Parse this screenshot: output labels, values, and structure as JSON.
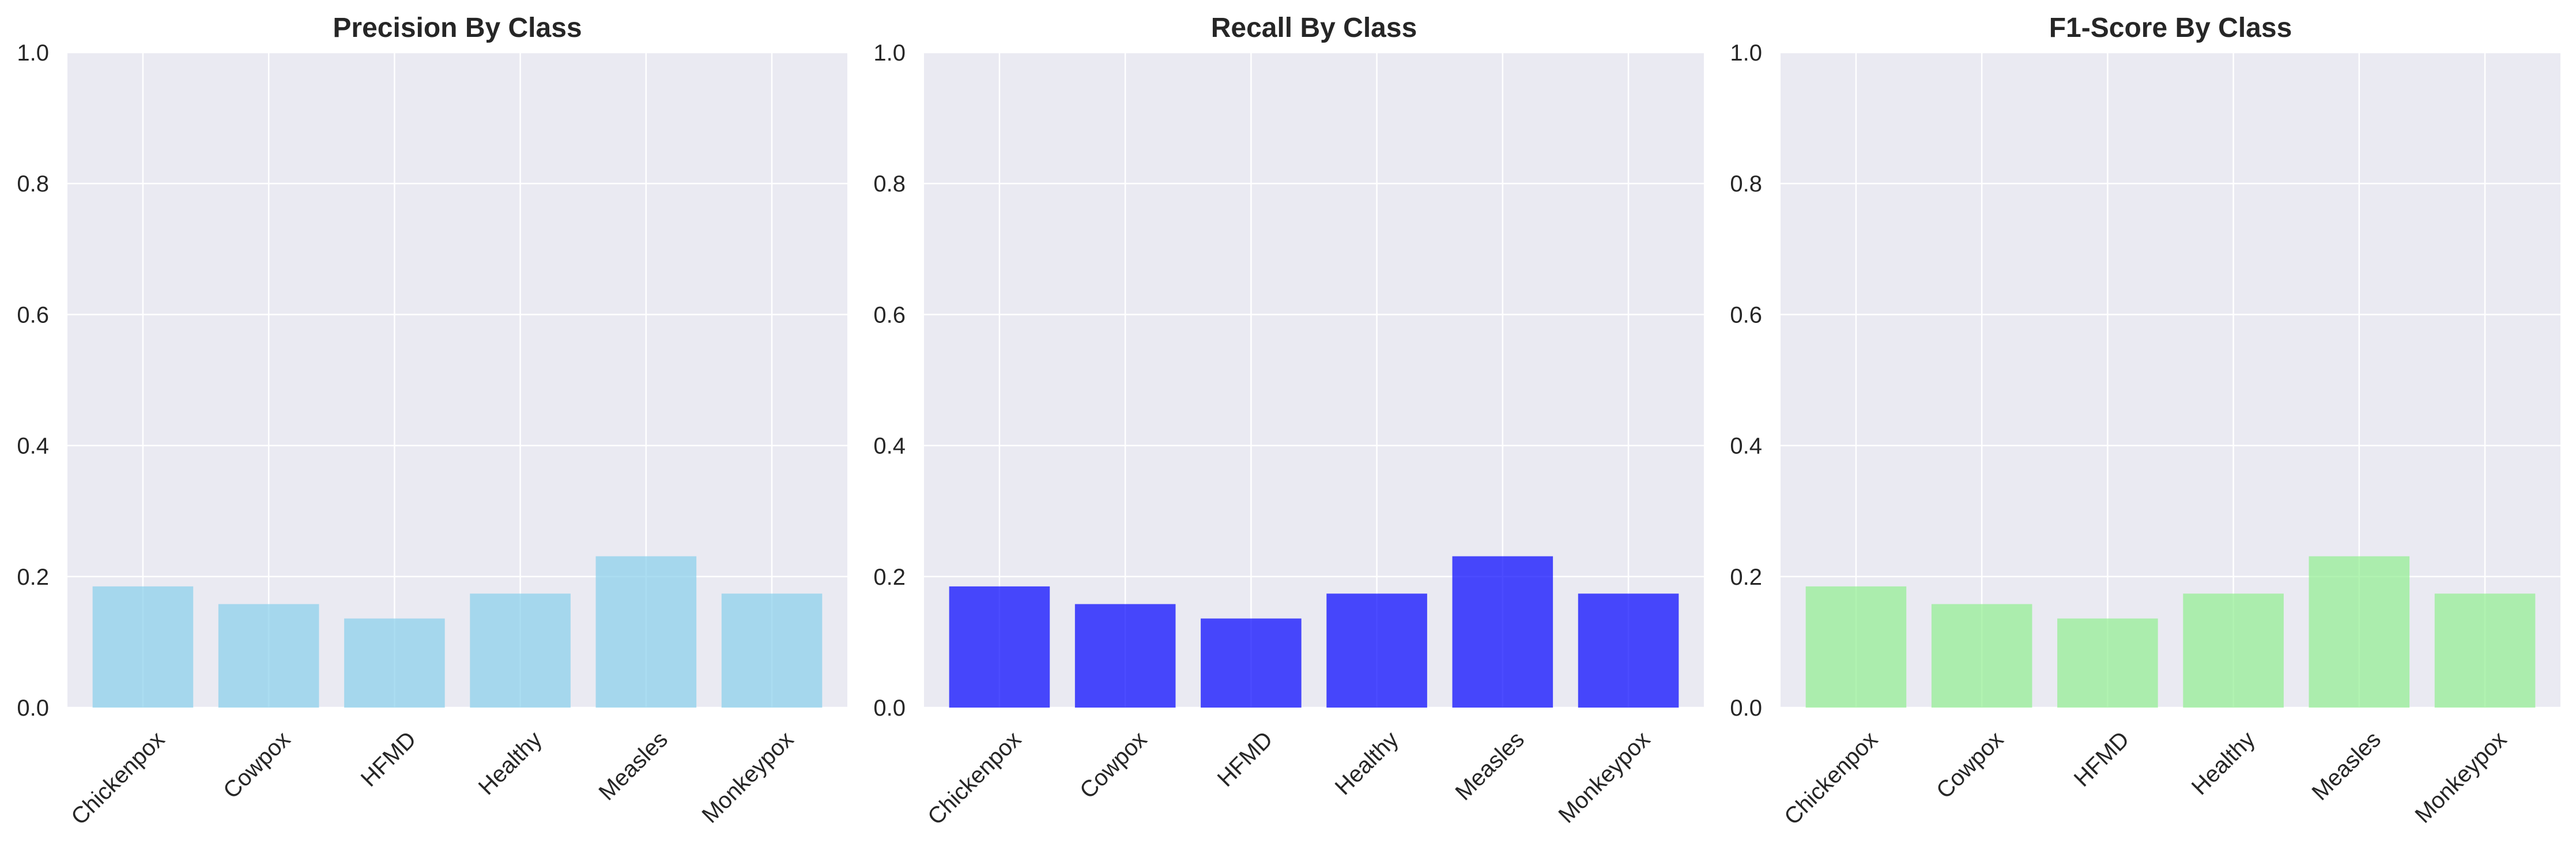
{
  "chart_data": [
    {
      "type": "bar",
      "title": "Precision By Class",
      "xlabel": "",
      "ylabel": "",
      "categories": [
        "Chickenpox",
        "Cowpox",
        "HFMD",
        "Healthy",
        "Measles",
        "Monkeypox"
      ],
      "values": [
        0.185,
        0.158,
        0.136,
        0.174,
        0.231,
        0.174
      ],
      "ylim": [
        0,
        1.0
      ],
      "yticks": [
        "0.0",
        "0.2",
        "0.4",
        "0.6",
        "0.8",
        "1.0"
      ],
      "color": "#87CEEB",
      "grid": true,
      "legend": "none"
    },
    {
      "type": "bar",
      "title": "Recall By Class",
      "xlabel": "",
      "ylabel": "",
      "categories": [
        "Chickenpox",
        "Cowpox",
        "HFMD",
        "Healthy",
        "Measles",
        "Monkeypox"
      ],
      "values": [
        0.185,
        0.158,
        0.136,
        0.174,
        0.231,
        0.174
      ],
      "ylim": [
        0,
        1.0
      ],
      "yticks": [
        "0.0",
        "0.2",
        "0.4",
        "0.6",
        "0.8",
        "1.0"
      ],
      "color": "#0000FF",
      "grid": true,
      "legend": "none"
    },
    {
      "type": "bar",
      "title": "F1-Score By Class",
      "xlabel": "",
      "ylabel": "",
      "categories": [
        "Chickenpox",
        "Cowpox",
        "HFMD",
        "Healthy",
        "Measles",
        "Monkeypox"
      ],
      "values": [
        0.185,
        0.158,
        0.136,
        0.174,
        0.231,
        0.174
      ],
      "ylim": [
        0,
        1.0
      ],
      "yticks": [
        "0.0",
        "0.2",
        "0.4",
        "0.6",
        "0.8",
        "1.0"
      ],
      "color": "#90EE90",
      "grid": true,
      "legend": "none"
    }
  ],
  "style": {
    "axes_background": "#EAEAF2",
    "grid_color": "#FFFFFF",
    "bar_opacity": 0.7
  }
}
